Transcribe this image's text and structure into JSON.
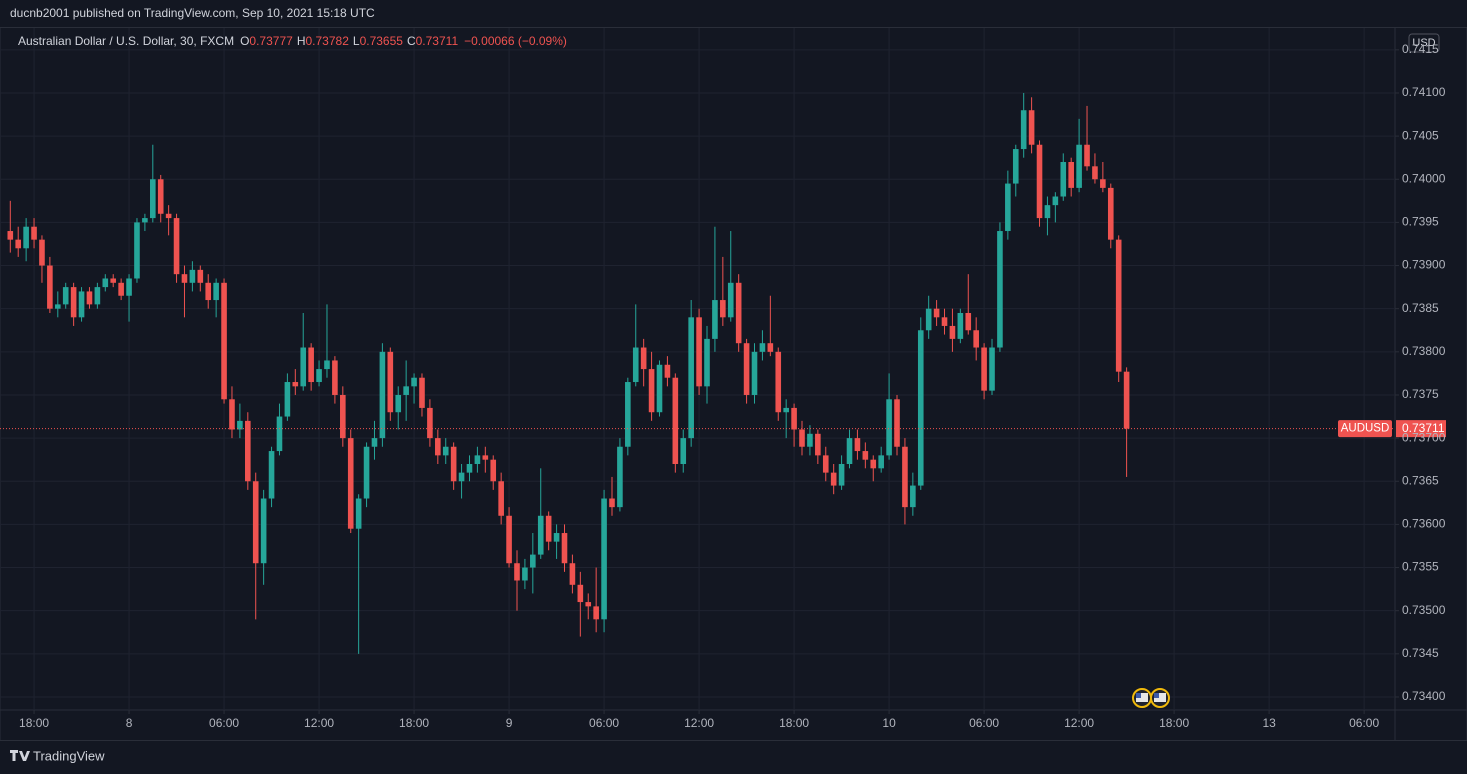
{
  "header": {
    "text": "ducnb2001 published on TradingView.com, Sep 10, 2021 15:18 UTC"
  },
  "footer": {
    "brand": "TradingView"
  },
  "chart_data": {
    "type": "candlestick",
    "title": "Australian Dollar / U.S. Dollar, 30, FXCM",
    "ohlc_labels": [
      "O",
      "H",
      "L",
      "C"
    ],
    "change": "−0.00066 (−0.09%)",
    "symbol": "AUDUSD",
    "currency": "USD",
    "up_color": "#26a69a",
    "down_color": "#ef5350",
    "grid": true,
    "ohlc": [
      [
        0.7394,
        0.73975,
        0.73915,
        0.7393
      ],
      [
        0.7393,
        0.73945,
        0.7391,
        0.7392
      ],
      [
        0.7392,
        0.73955,
        0.73905,
        0.73945
      ],
      [
        0.73945,
        0.73955,
        0.7392,
        0.7393
      ],
      [
        0.7393,
        0.73935,
        0.7388,
        0.739
      ],
      [
        0.739,
        0.7391,
        0.73845,
        0.7385
      ],
      [
        0.7385,
        0.7387,
        0.7384,
        0.73855
      ],
      [
        0.73855,
        0.7388,
        0.7385,
        0.73875
      ],
      [
        0.73875,
        0.7388,
        0.7383,
        0.7384
      ],
      [
        0.7384,
        0.73875,
        0.73835,
        0.7387
      ],
      [
        0.7387,
        0.73875,
        0.7385,
        0.73855
      ],
      [
        0.73855,
        0.7388,
        0.7385,
        0.73875
      ],
      [
        0.73875,
        0.7389,
        0.7387,
        0.73885
      ],
      [
        0.73885,
        0.7389,
        0.73875,
        0.7388
      ],
      [
        0.7388,
        0.73885,
        0.7386,
        0.73865
      ],
      [
        0.73865,
        0.7389,
        0.73835,
        0.73885
      ],
      [
        0.73885,
        0.73955,
        0.7388,
        0.7395
      ],
      [
        0.7395,
        0.7396,
        0.7394,
        0.73955
      ],
      [
        0.73955,
        0.7404,
        0.7395,
        0.74
      ],
      [
        0.74,
        0.74005,
        0.7395,
        0.7396
      ],
      [
        0.7396,
        0.7397,
        0.73935,
        0.73955
      ],
      [
        0.73955,
        0.7396,
        0.7388,
        0.7389
      ],
      [
        0.7389,
        0.739,
        0.7384,
        0.7388
      ],
      [
        0.7388,
        0.73905,
        0.7387,
        0.73895
      ],
      [
        0.73895,
        0.739,
        0.7387,
        0.7388
      ],
      [
        0.7388,
        0.7389,
        0.7385,
        0.7386
      ],
      [
        0.7386,
        0.73885,
        0.7384,
        0.7388
      ],
      [
        0.7388,
        0.73885,
        0.7374,
        0.73745
      ],
      [
        0.73745,
        0.7376,
        0.737,
        0.7371
      ],
      [
        0.7371,
        0.7374,
        0.737,
        0.7372
      ],
      [
        0.7372,
        0.7373,
        0.7364,
        0.7365
      ],
      [
        0.7365,
        0.7366,
        0.7349,
        0.73555
      ],
      [
        0.73555,
        0.7364,
        0.7353,
        0.7363
      ],
      [
        0.7363,
        0.7369,
        0.7362,
        0.73685
      ],
      [
        0.73685,
        0.7374,
        0.7368,
        0.73725
      ],
      [
        0.73725,
        0.73775,
        0.7372,
        0.73765
      ],
      [
        0.73765,
        0.7378,
        0.7375,
        0.7376
      ],
      [
        0.7376,
        0.73845,
        0.73755,
        0.73805
      ],
      [
        0.73805,
        0.7381,
        0.73755,
        0.73765
      ],
      [
        0.73765,
        0.7379,
        0.7376,
        0.7378
      ],
      [
        0.7378,
        0.73855,
        0.7377,
        0.7379
      ],
      [
        0.7379,
        0.73795,
        0.7374,
        0.7375
      ],
      [
        0.7375,
        0.7376,
        0.7369,
        0.737
      ],
      [
        0.737,
        0.7371,
        0.7359,
        0.73595
      ],
      [
        0.73595,
        0.73635,
        0.7345,
        0.7363
      ],
      [
        0.7363,
        0.73695,
        0.7362,
        0.7369
      ],
      [
        0.7369,
        0.7372,
        0.73675,
        0.737
      ],
      [
        0.737,
        0.7381,
        0.7369,
        0.738
      ],
      [
        0.738,
        0.73805,
        0.7372,
        0.7373
      ],
      [
        0.7373,
        0.7376,
        0.7371,
        0.7375
      ],
      [
        0.7375,
        0.7379,
        0.7372,
        0.7376
      ],
      [
        0.7376,
        0.73775,
        0.7374,
        0.7377
      ],
      [
        0.7377,
        0.73775,
        0.73725,
        0.73735
      ],
      [
        0.73735,
        0.73745,
        0.7369,
        0.737
      ],
      [
        0.737,
        0.7371,
        0.7367,
        0.7368
      ],
      [
        0.7368,
        0.737,
        0.7367,
        0.7369
      ],
      [
        0.7369,
        0.73695,
        0.7364,
        0.7365
      ],
      [
        0.7365,
        0.7367,
        0.7363,
        0.7366
      ],
      [
        0.7366,
        0.7368,
        0.7365,
        0.7367
      ],
      [
        0.7367,
        0.7369,
        0.7366,
        0.7368
      ],
      [
        0.7368,
        0.7369,
        0.7366,
        0.73675
      ],
      [
        0.73675,
        0.7368,
        0.7364,
        0.7365
      ],
      [
        0.7365,
        0.7366,
        0.736,
        0.7361
      ],
      [
        0.7361,
        0.7362,
        0.7355,
        0.73555
      ],
      [
        0.73555,
        0.7357,
        0.735,
        0.73535
      ],
      [
        0.73535,
        0.7356,
        0.73525,
        0.7355
      ],
      [
        0.7355,
        0.7359,
        0.7352,
        0.73565
      ],
      [
        0.73565,
        0.73665,
        0.7356,
        0.7361
      ],
      [
        0.7361,
        0.73615,
        0.7357,
        0.7358
      ],
      [
        0.7358,
        0.736,
        0.7356,
        0.7359
      ],
      [
        0.7359,
        0.736,
        0.73545,
        0.73555
      ],
      [
        0.73555,
        0.73565,
        0.7352,
        0.7353
      ],
      [
        0.7353,
        0.73545,
        0.7347,
        0.7351
      ],
      [
        0.7351,
        0.7352,
        0.7349,
        0.73505
      ],
      [
        0.73505,
        0.7355,
        0.73475,
        0.7349
      ],
      [
        0.7349,
        0.7364,
        0.73475,
        0.7363
      ],
      [
        0.7363,
        0.73655,
        0.7361,
        0.7362
      ],
      [
        0.7362,
        0.737,
        0.73615,
        0.7369
      ],
      [
        0.7369,
        0.7377,
        0.7368,
        0.73765
      ],
      [
        0.73765,
        0.73855,
        0.7376,
        0.73805
      ],
      [
        0.73805,
        0.73815,
        0.7376,
        0.7378
      ],
      [
        0.7378,
        0.738,
        0.7372,
        0.7373
      ],
      [
        0.7373,
        0.7379,
        0.73725,
        0.73785
      ],
      [
        0.73785,
        0.73795,
        0.7376,
        0.7377
      ],
      [
        0.7377,
        0.73775,
        0.7366,
        0.7367
      ],
      [
        0.7367,
        0.7371,
        0.7366,
        0.737
      ],
      [
        0.737,
        0.7386,
        0.7369,
        0.7384
      ],
      [
        0.7384,
        0.7385,
        0.7375,
        0.7376
      ],
      [
        0.7376,
        0.7383,
        0.7374,
        0.73815
      ],
      [
        0.73815,
        0.73945,
        0.738,
        0.7386
      ],
      [
        0.7386,
        0.7391,
        0.7383,
        0.7384
      ],
      [
        0.7384,
        0.7394,
        0.73835,
        0.7388
      ],
      [
        0.7388,
        0.7389,
        0.738,
        0.7381
      ],
      [
        0.7381,
        0.73815,
        0.7374,
        0.7375
      ],
      [
        0.7375,
        0.7381,
        0.7374,
        0.738
      ],
      [
        0.738,
        0.73825,
        0.7379,
        0.7381
      ],
      [
        0.7381,
        0.73865,
        0.73795,
        0.738
      ],
      [
        0.738,
        0.73805,
        0.7372,
        0.7373
      ],
      [
        0.7373,
        0.73745,
        0.737,
        0.73735
      ],
      [
        0.73735,
        0.7374,
        0.7369,
        0.7371
      ],
      [
        0.7371,
        0.7372,
        0.7368,
        0.7369
      ],
      [
        0.7369,
        0.73715,
        0.7368,
        0.73705
      ],
      [
        0.73705,
        0.7371,
        0.7367,
        0.7368
      ],
      [
        0.7368,
        0.7369,
        0.7365,
        0.7366
      ],
      [
        0.7366,
        0.7367,
        0.73635,
        0.73645
      ],
      [
        0.73645,
        0.7368,
        0.7364,
        0.7367
      ],
      [
        0.7367,
        0.7371,
        0.73665,
        0.737
      ],
      [
        0.737,
        0.7371,
        0.73675,
        0.73685
      ],
      [
        0.73685,
        0.73695,
        0.73665,
        0.73675
      ],
      [
        0.73675,
        0.7368,
        0.7365,
        0.73665
      ],
      [
        0.73665,
        0.7369,
        0.7366,
        0.7368
      ],
      [
        0.7368,
        0.73775,
        0.73675,
        0.73745
      ],
      [
        0.73745,
        0.7375,
        0.7368,
        0.7369
      ],
      [
        0.7369,
        0.737,
        0.736,
        0.7362
      ],
      [
        0.7362,
        0.7366,
        0.7361,
        0.73645
      ],
      [
        0.73645,
        0.7384,
        0.7364,
        0.73825
      ],
      [
        0.73825,
        0.73865,
        0.73815,
        0.7385
      ],
      [
        0.7385,
        0.7386,
        0.7383,
        0.7384
      ],
      [
        0.7384,
        0.7385,
        0.7382,
        0.7383
      ],
      [
        0.7383,
        0.7385,
        0.738,
        0.73815
      ],
      [
        0.73815,
        0.7385,
        0.7381,
        0.73845
      ],
      [
        0.73845,
        0.7389,
        0.7382,
        0.73825
      ],
      [
        0.73825,
        0.7384,
        0.7379,
        0.73805
      ],
      [
        0.73805,
        0.7381,
        0.73745,
        0.73755
      ],
      [
        0.73755,
        0.73815,
        0.7375,
        0.73805
      ],
      [
        0.73805,
        0.7395,
        0.738,
        0.7394
      ],
      [
        0.7394,
        0.7401,
        0.7393,
        0.73995
      ],
      [
        0.73995,
        0.7404,
        0.7398,
        0.74035
      ],
      [
        0.74035,
        0.741,
        0.74025,
        0.7408
      ],
      [
        0.7408,
        0.74095,
        0.7403,
        0.7404
      ],
      [
        0.7404,
        0.74045,
        0.73945,
        0.73955
      ],
      [
        0.73955,
        0.7398,
        0.73935,
        0.7397
      ],
      [
        0.7397,
        0.73985,
        0.7395,
        0.7398
      ],
      [
        0.7398,
        0.7403,
        0.73975,
        0.7402
      ],
      [
        0.7402,
        0.74025,
        0.7398,
        0.7399
      ],
      [
        0.7399,
        0.7407,
        0.73985,
        0.7404
      ],
      [
        0.7404,
        0.74085,
        0.7401,
        0.74015
      ],
      [
        0.74015,
        0.7403,
        0.73995,
        0.74
      ],
      [
        0.74,
        0.7402,
        0.73985,
        0.7399
      ],
      [
        0.7399,
        0.73995,
        0.7392,
        0.7393
      ],
      [
        0.7393,
        0.73935,
        0.73765,
        0.73777
      ],
      [
        0.73777,
        0.73782,
        0.73655,
        0.73711
      ]
    ],
    "xlim": [
      -1.3,
      174.9
    ],
    "xticks": [
      {
        "value": 3,
        "label": "18:00"
      },
      {
        "value": 15,
        "label": "8"
      },
      {
        "value": 27,
        "label": "06:00"
      },
      {
        "value": 39,
        "label": "12:00"
      },
      {
        "value": 51,
        "label": "18:00"
      },
      {
        "value": 63,
        "label": "9"
      },
      {
        "value": 75,
        "label": "06:00"
      },
      {
        "value": 87,
        "label": "12:00"
      },
      {
        "value": 99,
        "label": "18:00"
      },
      {
        "value": 111,
        "label": "10"
      },
      {
        "value": 123,
        "label": "06:00"
      },
      {
        "value": 135,
        "label": "12:00"
      },
      {
        "value": 147,
        "label": "18:00"
      },
      {
        "value": 159,
        "label": "13"
      },
      {
        "value": 171,
        "label": "06:00"
      }
    ],
    "ylim": [
      0.733849,
      0.741753
    ],
    "yticks": [
      {
        "value": 0.734,
        "label": "0.73400"
      },
      0.7345,
      {
        "value": 0.735,
        "label": "0.73500"
      },
      0.7355,
      {
        "value": 0.736,
        "label": "0.73600"
      },
      0.7365,
      {
        "value": 0.737,
        "label": "0.73700"
      },
      0.7375,
      {
        "value": 0.738,
        "label": "0.73800"
      },
      0.7385,
      {
        "value": 0.739,
        "label": "0.73900"
      },
      0.7395,
      {
        "value": 0.74,
        "label": "0.74000"
      },
      0.7405,
      {
        "value": 0.741,
        "label": "0.74100"
      },
      0.7415
    ]
  }
}
